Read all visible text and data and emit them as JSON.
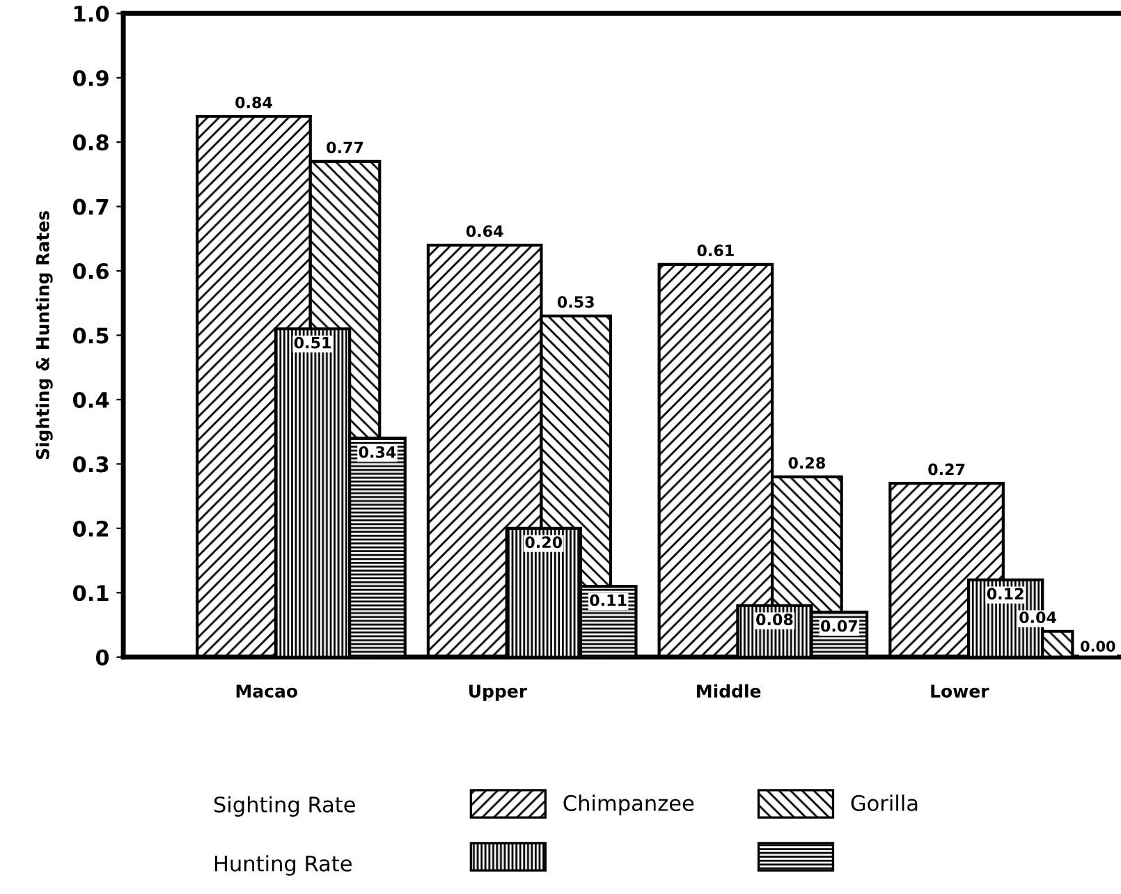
{
  "chart_data": {
    "type": "bar",
    "ylabel": "Sighting & Hunting Rates",
    "categories": [
      "Macao",
      "Upper",
      "Middle",
      "Lower"
    ],
    "series": [
      {
        "name": "Chimpanzee",
        "color": "#000000",
        "values": [
          0.84,
          0.64,
          0.61,
          0.27
        ],
        "value_labels": [
          "0.84",
          "0.64",
          "0.61",
          "0.27"
        ]
      },
      {
        "name": "Gorilla",
        "color": "#000000",
        "values": [
          0.77,
          0.53,
          0.28,
          0.04
        ],
        "value_labels": [
          "0.77",
          "0.53",
          "0.28",
          "0.04"
        ]
      },
      {
        "color": "#000000",
        "values": [
          0.51,
          0.2,
          0.08,
          0.12
        ],
        "value_labels": [
          "0.51",
          "0.20",
          "0.08",
          "0.12"
        ]
      },
      {
        "color": "#000000",
        "values": [
          0.34,
          0.11,
          0.07,
          0.0
        ],
        "value_labels": [
          "0.34",
          "0.11",
          "0.07",
          "0.00"
        ]
      }
    ],
    "annotations": [
      "Sighting Rate",
      "Hunting Rate"
    ],
    "ylim": [
      0,
      1.0
    ],
    "yticks": [
      {
        "value": 0,
        "label": "0"
      },
      0.1,
      0.2,
      0.3,
      0.4,
      0.5,
      0.6,
      0.7,
      0.8,
      0.9,
      {
        "value": 1.0,
        "label": "1.0"
      }
    ],
    "grid": false,
    "legend": "bottom"
  }
}
